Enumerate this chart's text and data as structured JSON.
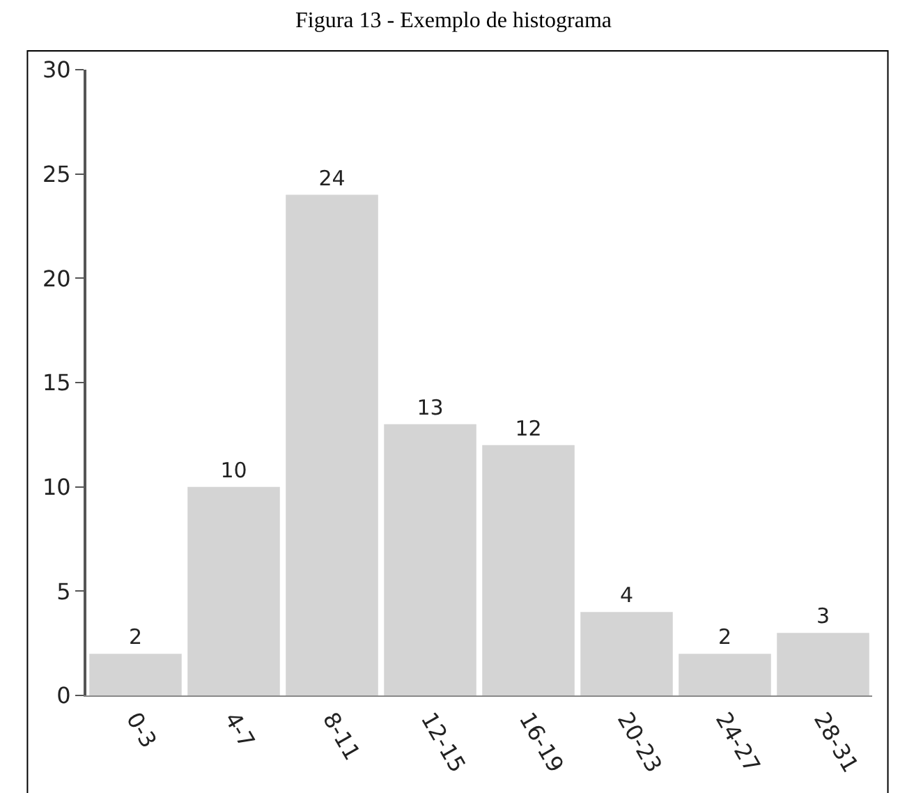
{
  "chart_data": {
    "type": "bar",
    "title": "Figura 13 - Exemplo de histograma",
    "categories": [
      "0-3",
      "4-7",
      "8-11",
      "12-15",
      "16-19",
      "20-23",
      "24-27",
      "28-31"
    ],
    "values": [
      2,
      10,
      24,
      13,
      12,
      4,
      2,
      3
    ],
    "color": "#d4d4d4",
    "ylim": [
      0,
      30
    ],
    "yticks": [
      0,
      5,
      10,
      15,
      20,
      25,
      30
    ],
    "data_labels": true
  }
}
